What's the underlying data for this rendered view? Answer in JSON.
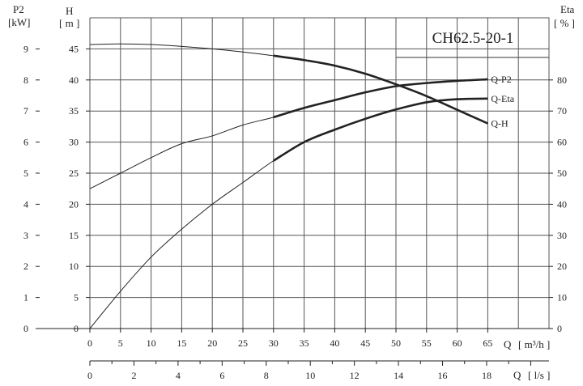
{
  "chart_data": {
    "type": "line",
    "title": "CH62.5-20-1",
    "x_axis_flow_m3h": {
      "label": "Q",
      "unit": "[ m³/h ]",
      "ticks": [
        "0",
        "5",
        "10",
        "15",
        "20",
        "25",
        "30",
        "35",
        "40",
        "45",
        "50",
        "55",
        "60",
        "65"
      ],
      "range": [
        0,
        75
      ]
    },
    "x_axis_flow_ls": {
      "label": "Q",
      "unit": "[ l/s ]",
      "ticks": [
        "0",
        "2",
        "4",
        "6",
        "8",
        "10",
        "12",
        "14",
        "16",
        "18"
      ],
      "range": [
        0,
        20.83
      ]
    },
    "y_axis_power": {
      "label": "P2",
      "unit": "[kW]",
      "ticks": [
        "0",
        "1",
        "2",
        "3",
        "4",
        "5",
        "6",
        "7",
        "8",
        "9"
      ],
      "range": [
        0,
        10
      ]
    },
    "y_axis_head": {
      "label": "H",
      "unit": "[ m ]",
      "ticks": [
        "0",
        "5",
        "10",
        "15",
        "20",
        "25",
        "30",
        "35",
        "40",
        "45"
      ],
      "range": [
        0,
        50
      ]
    },
    "y_axis_efficiency": {
      "label": "Eta",
      "unit": "[ % ]",
      "ticks": [
        "0",
        "10",
        "20",
        "30",
        "40",
        "50",
        "60",
        "70",
        "80"
      ],
      "range": [
        0,
        100
      ]
    },
    "grid": true,
    "series": [
      {
        "name": "Q-P2",
        "axis": "power",
        "x": [
          0,
          5,
          10,
          15,
          20,
          25,
          30,
          35,
          40,
          45,
          50,
          55,
          60,
          65
        ],
        "y": [
          4.5,
          5.0,
          5.5,
          5.95,
          6.2,
          6.55,
          6.8,
          7.1,
          7.35,
          7.6,
          7.8,
          7.9,
          7.97,
          8.02
        ],
        "bold_from": 30
      },
      {
        "name": "Q-Eta",
        "axis": "efficiency",
        "x": [
          0,
          5,
          10,
          15,
          20,
          25,
          30,
          35,
          40,
          45,
          50,
          55,
          60,
          65
        ],
        "y": [
          0,
          12,
          23,
          32,
          40,
          47,
          54,
          60,
          64,
          67.5,
          70.5,
          72.8,
          73.8,
          74
        ],
        "bold_from": 30
      },
      {
        "name": "Q-H",
        "axis": "head",
        "x": [
          0,
          5,
          10,
          15,
          20,
          25,
          30,
          35,
          40,
          45,
          50,
          55,
          60,
          65
        ],
        "y": [
          45.7,
          45.8,
          45.7,
          45.4,
          45.0,
          44.5,
          43.9,
          43.2,
          42.3,
          41.0,
          39.3,
          37.4,
          35.2,
          33.0
        ],
        "bold_from": 30
      }
    ]
  }
}
